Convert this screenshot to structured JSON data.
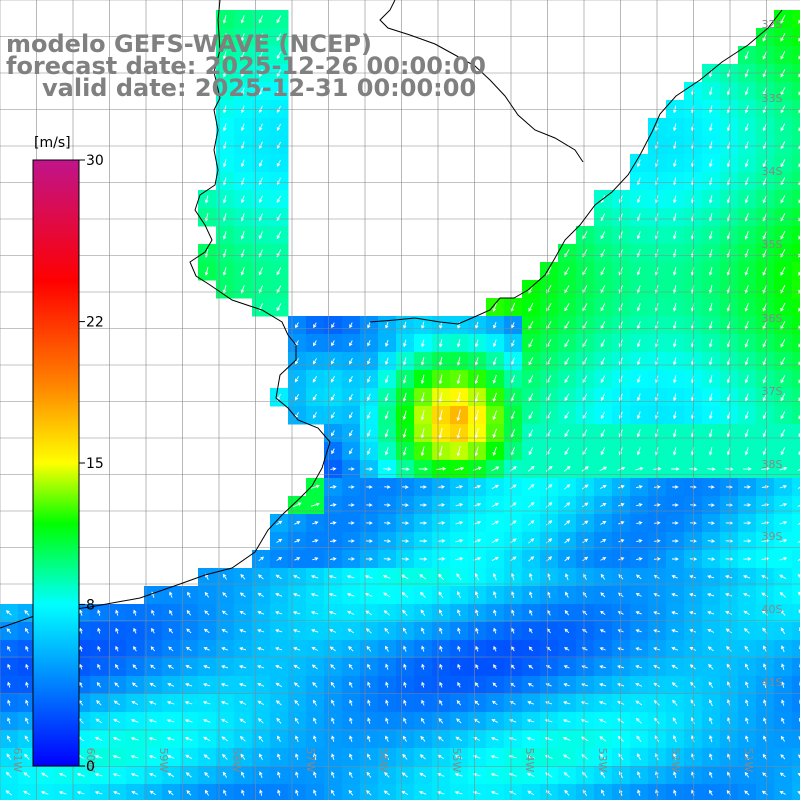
{
  "titles": {
    "model": "modelo GEFS-WAVE (NCEP)",
    "forecast": "forecast date: 2025-12-26 00:00:00",
    "valid": "valid date: 2025-12-31 00:00:00"
  },
  "colorbar": {
    "unit": "[m/s]",
    "ticks": [
      {
        "value": 30,
        "label": "30"
      },
      {
        "value": 22,
        "label": "22"
      },
      {
        "value": 15,
        "label": "15"
      },
      {
        "value": 8,
        "label": "8"
      },
      {
        "value": 0,
        "label": "0"
      }
    ],
    "stops": [
      {
        "value": 0,
        "color": "#0000ff"
      },
      {
        "value": 4,
        "color": "#0080ff"
      },
      {
        "value": 8,
        "color": "#00ffff"
      },
      {
        "value": 12,
        "color": "#00ff00"
      },
      {
        "value": 15,
        "color": "#ffff00"
      },
      {
        "value": 19,
        "color": "#ff8000"
      },
      {
        "value": 24,
        "color": "#ff0000"
      },
      {
        "value": 30,
        "color": "#c0148c"
      }
    ]
  },
  "map": {
    "latitude_labels": [
      "32S",
      "33S",
      "34S",
      "35S",
      "36S",
      "37S",
      "38S",
      "39S",
      "40S",
      "41S"
    ],
    "longitude_labels": [
      "61W",
      "60W",
      "59W",
      "58W",
      "57W",
      "56W",
      "55W",
      "54W",
      "53W",
      "52W",
      "51W"
    ],
    "land_color": "#ffffff",
    "grid_color": "#888888",
    "coast_color": "#000000",
    "arrow_color": "#ffffff"
  }
}
